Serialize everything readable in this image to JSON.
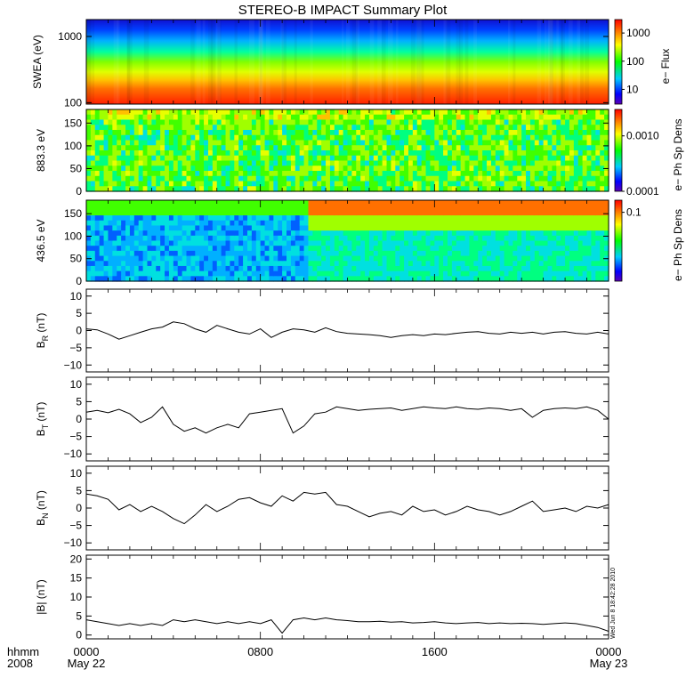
{
  "chart_data": {
    "type": "line",
    "title": "STEREO-B IMPACT Summary Plot",
    "x_axis": {
      "label_row1": "hhmm",
      "label_row2": "2008",
      "ticks": [
        {
          "hours": 0,
          "label": "0000",
          "date": "May 22"
        },
        {
          "hours": 8,
          "label": "0800",
          "date": ""
        },
        {
          "hours": 16,
          "label": "1600",
          "date": ""
        },
        {
          "hours": 24,
          "label": "0000",
          "date": "May 23"
        }
      ],
      "range_hours": [
        0,
        24
      ]
    },
    "timestamp_note": "Wed Jun 8 18:42:28 2010",
    "spectrograms": [
      {
        "id": "swea",
        "ylabel": "SWEA (eV)",
        "yscale": "log",
        "ylim": [
          95,
          1800
        ],
        "yticks": [
          {
            "v": 100,
            "t": "100"
          },
          {
            "v": 1000,
            "t": "1000"
          }
        ],
        "colorbar": {
          "label": "e− Flux",
          "scale": "log",
          "ticks": [
            "1000",
            "100",
            "10"
          ],
          "range": [
            3,
            3000
          ]
        },
        "description_values": {
          "low_energy_flux": "high (red)",
          "high_energy_flux": "low (blue)"
        }
      },
      {
        "id": "pad883",
        "ylabel": "883.3 eV",
        "yscale": "linear",
        "ylim": [
          0,
          180
        ],
        "yticks": [
          {
            "v": 0,
            "t": "0"
          },
          {
            "v": 50,
            "t": "50"
          },
          {
            "v": 100,
            "t": "100"
          },
          {
            "v": 150,
            "t": "150"
          }
        ],
        "colorbar": {
          "label": "e− Ph Sp Dens",
          "scale": "log",
          "ticks": [
            "0.0010",
            "0.0001"
          ],
          "range": [
            0.0001,
            0.003
          ]
        }
      },
      {
        "id": "pad436",
        "ylabel": "436.5 eV",
        "yscale": "linear",
        "ylim": [
          0,
          180
        ],
        "yticks": [
          {
            "v": 0,
            "t": "0"
          },
          {
            "v": 50,
            "t": "50"
          },
          {
            "v": 100,
            "t": "100"
          },
          {
            "v": 150,
            "t": "150"
          }
        ],
        "colorbar": {
          "label": "e− Ph Sp Dens",
          "scale": "log",
          "ticks": [
            "0.1"
          ],
          "range": [
            0.01,
            0.15
          ]
        }
      }
    ],
    "series": [
      {
        "id": "br",
        "ylabel": "B",
        "ysub": "R",
        "yunit": " (nT)",
        "ylim": [
          -12,
          12
        ],
        "yticks": [
          {
            "v": 10,
            "t": "10"
          },
          {
            "v": 5,
            "t": "5"
          },
          {
            "v": 0,
            "t": "0"
          },
          {
            "v": -5,
            "t": "−5"
          },
          {
            "v": -10,
            "t": "−10"
          }
        ],
        "x": [
          0,
          0.5,
          1,
          1.5,
          2,
          2.5,
          3,
          3.5,
          4,
          4.5,
          5,
          5.5,
          6,
          6.5,
          7,
          7.5,
          8,
          8.5,
          9,
          9.5,
          10,
          10.5,
          11,
          11.5,
          12,
          12.5,
          13,
          13.5,
          14,
          14.5,
          15,
          15.5,
          16,
          16.5,
          17,
          17.5,
          18,
          18.5,
          19,
          19.5,
          20,
          20.5,
          21,
          21.5,
          22,
          22.5,
          23,
          23.5,
          24
        ],
        "values": [
          0.5,
          0.2,
          -1.0,
          -2.5,
          -1.5,
          -0.5,
          0.5,
          1.0,
          2.5,
          2.0,
          0.5,
          -0.5,
          1.5,
          0.5,
          -0.5,
          -1.0,
          0.5,
          -2.0,
          -0.5,
          0.5,
          0.2,
          -0.5,
          0.8,
          -0.3,
          -0.8,
          -1.0,
          -1.2,
          -1.5,
          -2.0,
          -1.5,
          -1.2,
          -1.5,
          -1.0,
          -1.2,
          -0.8,
          -0.5,
          -0.3,
          -0.8,
          -1.0,
          -0.5,
          -0.8,
          -0.5,
          -1.0,
          -0.5,
          -0.3,
          -0.8,
          -1.0,
          -0.5,
          -1.0
        ]
      },
      {
        "id": "bt",
        "ylabel": "B",
        "ysub": "T",
        "yunit": " (nT)",
        "ylim": [
          -12,
          12
        ],
        "yticks": [
          {
            "v": 10,
            "t": "10"
          },
          {
            "v": 5,
            "t": "5"
          },
          {
            "v": 0,
            "t": "0"
          },
          {
            "v": -5,
            "t": "−5"
          },
          {
            "v": -10,
            "t": "−10"
          }
        ],
        "x": [
          0,
          0.5,
          1,
          1.5,
          2,
          2.5,
          3,
          3.5,
          4,
          4.5,
          5,
          5.5,
          6,
          6.5,
          7,
          7.5,
          8,
          8.5,
          9,
          9.5,
          10,
          10.5,
          11,
          11.5,
          12,
          12.5,
          13,
          13.5,
          14,
          14.5,
          15,
          15.5,
          16,
          16.5,
          17,
          17.5,
          18,
          18.5,
          19,
          19.5,
          20,
          20.5,
          21,
          21.5,
          22,
          22.5,
          23,
          23.5,
          24
        ],
        "values": [
          2.0,
          2.5,
          1.8,
          2.8,
          1.5,
          -1.0,
          0.5,
          3.5,
          -1.5,
          -3.5,
          -2.5,
          -4.0,
          -2.5,
          -1.5,
          -2.5,
          1.5,
          2.0,
          2.5,
          3.0,
          -4.0,
          -2.0,
          1.5,
          2.0,
          3.5,
          3.0,
          2.5,
          2.8,
          3.0,
          3.2,
          2.5,
          3.0,
          3.5,
          3.2,
          3.0,
          3.5,
          3.0,
          2.8,
          3.2,
          3.0,
          2.5,
          3.0,
          0.5,
          2.5,
          3.0,
          3.2,
          3.0,
          3.5,
          2.5,
          0.0
        ]
      },
      {
        "id": "bn",
        "ylabel": "B",
        "ysub": "N",
        "yunit": " (nT)",
        "ylim": [
          -12,
          12
        ],
        "yticks": [
          {
            "v": 10,
            "t": "10"
          },
          {
            "v": 5,
            "t": "5"
          },
          {
            "v": 0,
            "t": "0"
          },
          {
            "v": -5,
            "t": "−5"
          },
          {
            "v": -10,
            "t": "−10"
          }
        ],
        "x": [
          0,
          0.5,
          1,
          1.5,
          2,
          2.5,
          3,
          3.5,
          4,
          4.5,
          5,
          5.5,
          6,
          6.5,
          7,
          7.5,
          8,
          8.5,
          9,
          9.5,
          10,
          10.5,
          11,
          11.5,
          12,
          12.5,
          13,
          13.5,
          14,
          14.5,
          15,
          15.5,
          16,
          16.5,
          17,
          17.5,
          18,
          18.5,
          19,
          19.5,
          20,
          20.5,
          21,
          21.5,
          22,
          22.5,
          23,
          23.5,
          24
        ],
        "values": [
          4.0,
          3.5,
          2.5,
          -0.5,
          1.0,
          -1.0,
          0.5,
          -1.0,
          -3.0,
          -4.5,
          -2.0,
          1.0,
          -1.0,
          0.5,
          2.5,
          3.0,
          1.5,
          0.5,
          3.5,
          2.0,
          4.5,
          4.0,
          4.5,
          1.0,
          0.5,
          -1.0,
          -2.5,
          -1.5,
          -1.0,
          -2.0,
          0.5,
          -1.0,
          -0.5,
          -2.0,
          -1.0,
          0.5,
          -0.5,
          -1.0,
          -2.0,
          -1.0,
          0.5,
          2.0,
          -1.0,
          -0.5,
          0.0,
          -1.0,
          0.5,
          0.0,
          1.0
        ]
      },
      {
        "id": "bmag",
        "ylabel": "|B|",
        "ysub": "",
        "yunit": " (nT)",
        "ylim": [
          -1,
          21
        ],
        "yticks": [
          {
            "v": 20,
            "t": "20"
          },
          {
            "v": 15,
            "t": "15"
          },
          {
            "v": 10,
            "t": "10"
          },
          {
            "v": 5,
            "t": "5"
          },
          {
            "v": 0,
            "t": "0"
          }
        ],
        "x": [
          0,
          0.5,
          1,
          1.5,
          2,
          2.5,
          3,
          3.5,
          4,
          4.5,
          5,
          5.5,
          6,
          6.5,
          7,
          7.5,
          8,
          8.5,
          9,
          9.5,
          10,
          10.5,
          11,
          11.5,
          12,
          12.5,
          13,
          13.5,
          14,
          14.5,
          15,
          15.5,
          16,
          16.5,
          17,
          17.5,
          18,
          18.5,
          19,
          19.5,
          20,
          20.5,
          21,
          21.5,
          22,
          22.5,
          23,
          23.5,
          24
        ],
        "values": [
          4.0,
          3.5,
          3.0,
          2.5,
          3.0,
          2.5,
          3.0,
          2.5,
          4.0,
          3.5,
          4.0,
          3.5,
          3.0,
          3.5,
          3.0,
          3.5,
          3.0,
          4.0,
          0.5,
          4.0,
          4.5,
          4.0,
          4.5,
          4.0,
          3.8,
          3.5,
          3.5,
          3.6,
          3.4,
          3.5,
          3.2,
          3.3,
          3.5,
          3.2,
          3.0,
          3.2,
          3.3,
          3.0,
          3.2,
          3.0,
          3.1,
          3.0,
          2.8,
          3.0,
          3.2,
          3.0,
          2.5,
          2.0,
          1.0
        ]
      }
    ]
  }
}
